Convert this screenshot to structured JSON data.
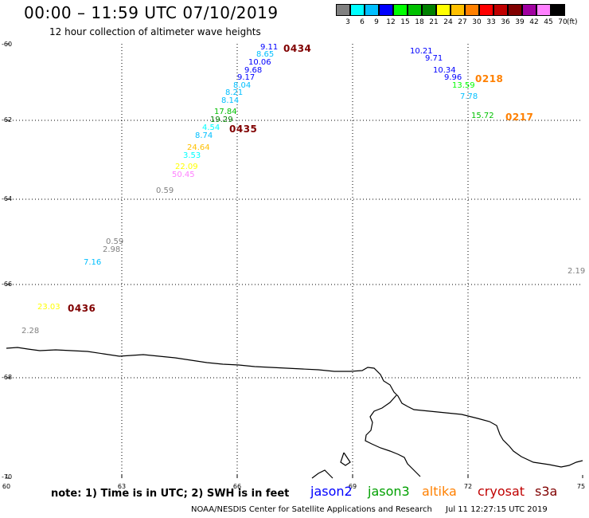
{
  "header": {
    "title": "00:00 – 11:59 UTC 07/10/2019",
    "subtitle": "12 hour collection of altimeter wave heights"
  },
  "color_scale": {
    "unit": "(ft)",
    "steps": [
      {
        "label": "3",
        "color": "#808080"
      },
      {
        "label": "6",
        "color": "#00ffff"
      },
      {
        "label": "9",
        "color": "#00bfff"
      },
      {
        "label": "12",
        "color": "#0000ff"
      },
      {
        "label": "15",
        "color": "#00ff00"
      },
      {
        "label": "18",
        "color": "#00c000"
      },
      {
        "label": "21",
        "color": "#008000"
      },
      {
        "label": "24",
        "color": "#ffff00"
      },
      {
        "label": "27",
        "color": "#ffc000"
      },
      {
        "label": "30",
        "color": "#ff8000"
      },
      {
        "label": "33",
        "color": "#ff0000"
      },
      {
        "label": "36",
        "color": "#c00000"
      },
      {
        "label": "39",
        "color": "#800000"
      },
      {
        "label": "42",
        "color": "#a000a0"
      },
      {
        "label": "45",
        "color": "#ff80ff"
      },
      {
        "label": "70",
        "color": "#000000"
      }
    ]
  },
  "axes": {
    "lat_labels": [
      "-60",
      "-62",
      "-64",
      "-66",
      "-68",
      "-70"
    ],
    "lon_labels": [
      "60",
      "63",
      "66",
      "69",
      "72",
      "75"
    ]
  },
  "observations": [
    {
      "text": "9.11",
      "lon": 66.6,
      "lat": -60.1,
      "color": "#0000ff"
    },
    {
      "text": "8.65",
      "lon": 66.5,
      "lat": -60.3,
      "color": "#00bfff"
    },
    {
      "text": "10.06",
      "lon": 66.3,
      "lat": -60.5,
      "color": "#0000ff"
    },
    {
      "text": "9.68",
      "lon": 66.2,
      "lat": -60.7,
      "color": "#0000ff"
    },
    {
      "text": "9.17",
      "lon": 66.0,
      "lat": -60.9,
      "color": "#0000ff"
    },
    {
      "text": "8.04",
      "lon": 65.9,
      "lat": -61.1,
      "color": "#00bfff"
    },
    {
      "text": "8.21",
      "lon": 65.7,
      "lat": -61.3,
      "color": "#00bfff"
    },
    {
      "text": "8.14",
      "lon": 65.6,
      "lat": -61.5,
      "color": "#00bfff"
    },
    {
      "text": "17.84",
      "lon": 65.4,
      "lat": -61.8,
      "color": "#00c000"
    },
    {
      "text": "19.29",
      "lon": 65.3,
      "lat": -62.0,
      "color": "#008000"
    },
    {
      "text": "4.54",
      "lon": 65.1,
      "lat": -62.2,
      "color": "#00ffff"
    },
    {
      "text": "8.74",
      "lon": 64.9,
      "lat": -62.4,
      "color": "#00bfff"
    },
    {
      "text": "24.64",
      "lon": 64.7,
      "lat": -62.7,
      "color": "#ffc000"
    },
    {
      "text": "3.53",
      "lon": 64.6,
      "lat": -62.9,
      "color": "#00ffff"
    },
    {
      "text": "22.09",
      "lon": 64.4,
      "lat": -63.2,
      "color": "#ffff00"
    },
    {
      "text": "50.45",
      "lon": 64.3,
      "lat": -63.4,
      "color": "#ff80ff"
    },
    {
      "text": "0.59",
      "lon": 63.9,
      "lat": -63.8,
      "color": "#808080"
    },
    {
      "text": "0.59",
      "lon": 62.6,
      "lat": -65.0,
      "color": "#808080"
    },
    {
      "text": "2.98",
      "lon": 62.5,
      "lat": -65.2,
      "color": "#808080"
    },
    {
      "text": "7.16",
      "lon": 62.0,
      "lat": -65.5,
      "color": "#00bfff"
    },
    {
      "text": "23.03",
      "lon": 60.8,
      "lat": -66.5,
      "color": "#ffff00"
    },
    {
      "text": "2.28",
      "lon": 60.4,
      "lat": -67.0,
      "color": "#808080"
    },
    {
      "text": "10.21",
      "lon": 70.5,
      "lat": -60.2,
      "color": "#0000ff"
    },
    {
      "text": "9.71",
      "lon": 70.9,
      "lat": -60.4,
      "color": "#0000ff"
    },
    {
      "text": "10.34",
      "lon": 71.1,
      "lat": -60.7,
      "color": "#0000ff"
    },
    {
      "text": "9.96",
      "lon": 71.4,
      "lat": -60.9,
      "color": "#0000ff"
    },
    {
      "text": "13.59",
      "lon": 71.6,
      "lat": -61.1,
      "color": "#00ff00"
    },
    {
      "text": "7.78",
      "lon": 71.8,
      "lat": -61.4,
      "color": "#00bfff"
    },
    {
      "text": "15.72",
      "lon": 72.1,
      "lat": -61.9,
      "color": "#00c000"
    },
    {
      "text": "2.19",
      "lon": 74.6,
      "lat": -65.7,
      "color": "#808080"
    }
  ],
  "pass_times": [
    {
      "text": "0434",
      "lon": 67.2,
      "lat": -60.1,
      "color": "#800000"
    },
    {
      "text": "0435",
      "lon": 65.8,
      "lat": -62.2,
      "color": "#800000"
    },
    {
      "text": "0436",
      "lon": 61.6,
      "lat": -66.5,
      "color": "#800000"
    },
    {
      "text": "0218",
      "lon": 72.2,
      "lat": -60.9,
      "color": "#ff8000"
    },
    {
      "text": "0217",
      "lon": 73.0,
      "lat": -61.9,
      "color": "#ff8000"
    }
  ],
  "colors": {
    "coastline": "#000000",
    "grid": "#000000"
  },
  "footer": {
    "note": "note:  1) Time is in UTC;  2) SWH is in feet",
    "satellites": [
      {
        "name": "jason2",
        "color": "#0000ff"
      },
      {
        "name": "jason3",
        "color": "#00a000"
      },
      {
        "name": "altika",
        "color": "#ff8000"
      },
      {
        "name": "cryosat",
        "color": "#c00000"
      },
      {
        "name": "s3a",
        "color": "#800000"
      }
    ],
    "credit": "NOAA/NESDIS Center for Satellite Applications and Research",
    "timestamp": "Jul 11 12:27:15 UTC 2019"
  }
}
